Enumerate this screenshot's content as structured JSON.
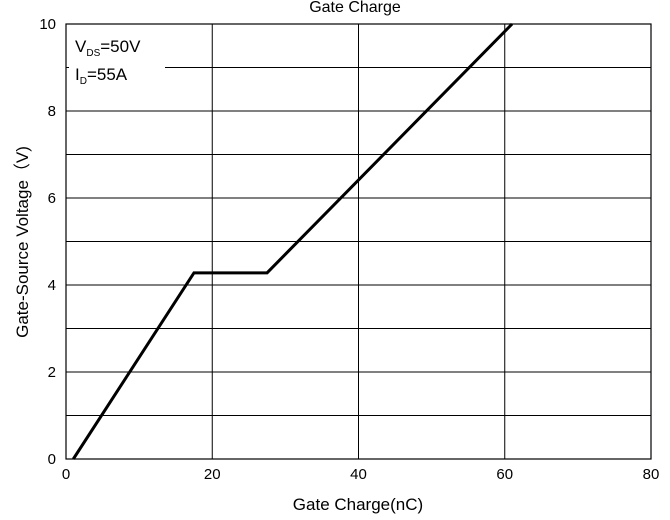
{
  "chart_data": {
    "type": "line",
    "title": "Gate Charge",
    "xlabel": "Gate Charge(nC)",
    "ylabel": "Gate-Source Voltage（V)",
    "xlim": [
      0,
      80
    ],
    "ylim": [
      0,
      10
    ],
    "xticks": [
      0,
      20,
      40,
      60,
      80
    ],
    "yticks": [
      0,
      2,
      4,
      6,
      8,
      10
    ],
    "grid": true,
    "series": [
      {
        "x": [
          1,
          17.5,
          27.5,
          61
        ],
        "y": [
          0,
          4.28,
          4.28,
          10
        ]
      }
    ],
    "annotations": {
      "vds": {
        "prefix": "V",
        "sub": "DS",
        "rest": "=50V"
      },
      "id": {
        "prefix": "I",
        "sub": "D",
        "rest": "=55A"
      }
    }
  }
}
